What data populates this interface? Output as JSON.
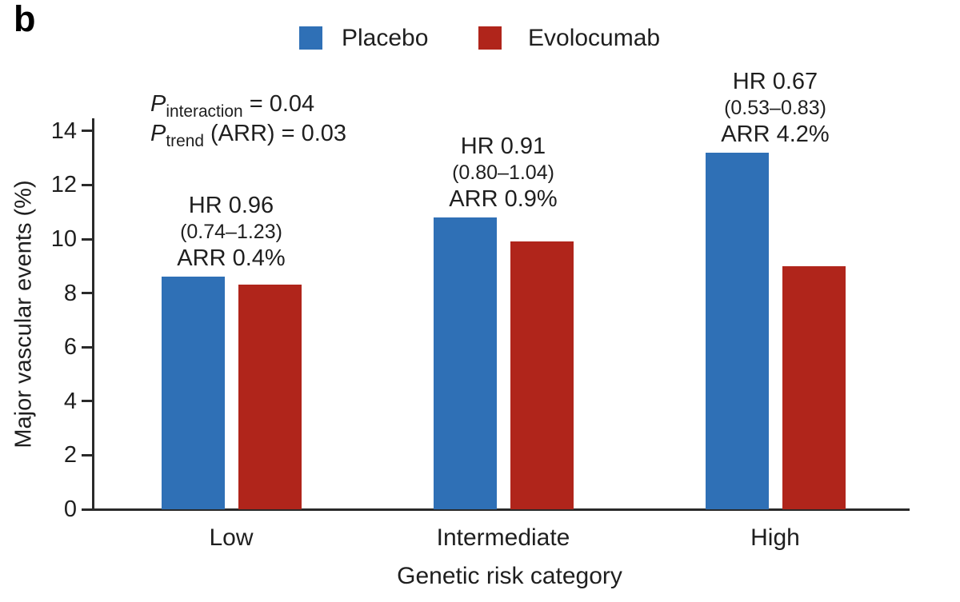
{
  "panel_label": "b",
  "legend": {
    "items": [
      {
        "label": "Placebo",
        "color": "#2F70B6"
      },
      {
        "label": "Evolocumab",
        "color": "#B0251B"
      }
    ]
  },
  "stats": {
    "p_interaction": {
      "symbol": "P",
      "sub": "interaction",
      "value": " = 0.04"
    },
    "p_trend": {
      "symbol": "P",
      "sub": "trend",
      "value": " (ARR) = 0.03"
    }
  },
  "chart_data": {
    "type": "bar",
    "title": "",
    "xlabel": "Genetic risk category",
    "ylabel": "Major vascular events (%)",
    "categories": [
      "Low",
      "Intermediate",
      "High"
    ],
    "series": [
      {
        "name": "Placebo",
        "color": "#2F70B6",
        "values": [
          8.6,
          10.8,
          13.2
        ]
      },
      {
        "name": "Evolocumab",
        "color": "#B0251B",
        "values": [
          8.3,
          9.9,
          9.0
        ]
      }
    ],
    "yticks": [
      0,
      2,
      4,
      6,
      8,
      10,
      12,
      14
    ],
    "ylim": [
      0,
      14.5
    ],
    "grid": false,
    "legend_position": "top-center",
    "group_annotations": [
      {
        "hr": "HR 0.96",
        "ci": "(0.74–1.23)",
        "arr": "ARR 0.4%"
      },
      {
        "hr": "HR 0.91",
        "ci": "(0.80–1.04)",
        "arr": "ARR 0.9%"
      },
      {
        "hr": "HR 0.67",
        "ci": "(0.53–0.83)",
        "arr": "ARR 4.2%"
      }
    ]
  }
}
